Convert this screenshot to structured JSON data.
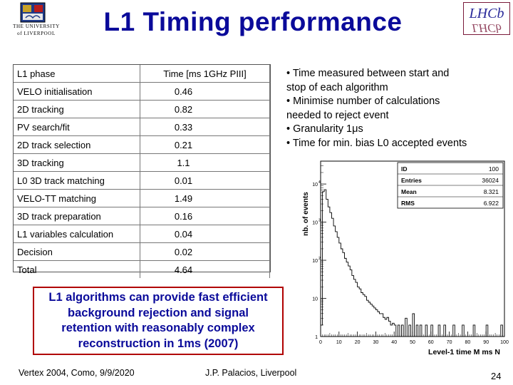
{
  "header": {
    "university_line1": "THE UNIVERSITY",
    "university_line2": "of LIVERPOOL",
    "title": "L1 Timing performance",
    "logo_lhcb": "LHCb",
    "colors": {
      "title": "#0a0a9a",
      "crest": "#1e3a8a"
    }
  },
  "table": {
    "header": {
      "col1": "L1 phase",
      "col2": "Time [ms 1GHz PIII]"
    },
    "rows": [
      {
        "phase": "VELO initialisation",
        "time": "0.46"
      },
      {
        "phase": "2D tracking",
        "time": "0.82"
      },
      {
        "phase": "PV search/fit",
        "time": "0.33"
      },
      {
        "phase": "2D track selection",
        "time": "0.21"
      },
      {
        "phase": "3D tracking",
        "time": "1.1"
      },
      {
        "phase": "L0 3D track matching",
        "time": "0.01"
      },
      {
        "phase": "VELO-TT matching",
        "time": "1.49"
      },
      {
        "phase": "3D track preparation",
        "time": "0.16"
      },
      {
        "phase": "L1 variables calculation",
        "time": "0.04"
      },
      {
        "phase": "Decision",
        "time": "0.02"
      },
      {
        "phase": "Total",
        "time": "4.64"
      }
    ]
  },
  "notes": [
    "• Time measured between start and",
    "stop of each algorithm",
    "• Minimise number of calculations",
    "needed to reject event",
    "• Granularity 1μs",
    "• Time for min. bias L0 accepted events"
  ],
  "histogram": {
    "ylabel": "nb. of events",
    "xlabel": "Level-1 time M ms N",
    "stats": [
      {
        "key": "ID",
        "value": "100"
      },
      {
        "key": "Entries",
        "value": "36024"
      },
      {
        "key": "Mean",
        "value": "8.321"
      },
      {
        "key": "RMS",
        "value": "6.922"
      }
    ],
    "y_ticks": [
      "10",
      "10",
      "10",
      "10",
      "1"
    ],
    "y_tick_exponents": [
      "4",
      "3",
      "2",
      "",
      ""
    ],
    "x_ticks": [
      "0",
      "10",
      "20",
      "30",
      "40",
      "50",
      "60",
      "70",
      "80",
      "90",
      "100"
    ]
  },
  "chart_data": {
    "type": "bar",
    "xlabel": "Level-1 time M ms N",
    "ylabel": "nb. of events",
    "xlim": [
      0,
      100
    ],
    "ylim_log10": [
      0,
      4.6
    ],
    "bin_width": 1,
    "bins_log10": [
      0.3,
      3.8,
      3.85,
      3.6,
      3.4,
      3.25,
      3.1,
      2.9,
      2.75,
      2.6,
      2.45,
      2.3,
      2.2,
      2.05,
      1.95,
      1.85,
      1.75,
      1.6,
      1.5,
      1.42,
      1.3,
      1.25,
      1.15,
      1.1,
      1.05,
      0.95,
      0.9,
      0.85,
      0.8,
      0.75,
      0.7,
      0.65,
      0.6,
      0.6,
      0.5,
      0.45,
      0.5,
      0.4,
      0.3,
      0.35,
      0.3,
      0.0,
      0.3,
      0.0,
      0.3,
      0.0,
      0.48,
      0.0,
      0.3,
      0.0,
      0.6,
      0.0,
      0.3,
      0.0,
      0.3,
      0.0,
      0.0,
      0.3,
      0.0,
      0.0,
      0.3,
      0.0,
      0.0,
      0.0,
      0.3,
      0.0,
      0.0,
      0.3,
      0.0,
      0.0,
      0.0,
      0.0,
      0.3,
      0.0,
      0.0,
      0.0,
      0.0,
      0.3,
      0.0,
      0.0,
      0.0,
      0.0,
      0.0,
      0.3,
      0.0,
      0.0,
      0.0,
      0.0,
      0.0,
      0.0,
      0.3,
      0.0,
      0.0,
      0.0,
      0.0,
      0.0,
      0.0,
      0.0,
      0.3,
      0.0
    ]
  },
  "conclusion": [
    "L1 algorithms can provide fast efficient",
    "background rejection and signal",
    "retention with reasonably complex",
    "reconstruction in 1ms (2007)"
  ],
  "footer": {
    "left": "Vertex 2004, Como, 9/9/2020",
    "middle": "J.P. Palacios, Liverpool",
    "page": "24"
  }
}
